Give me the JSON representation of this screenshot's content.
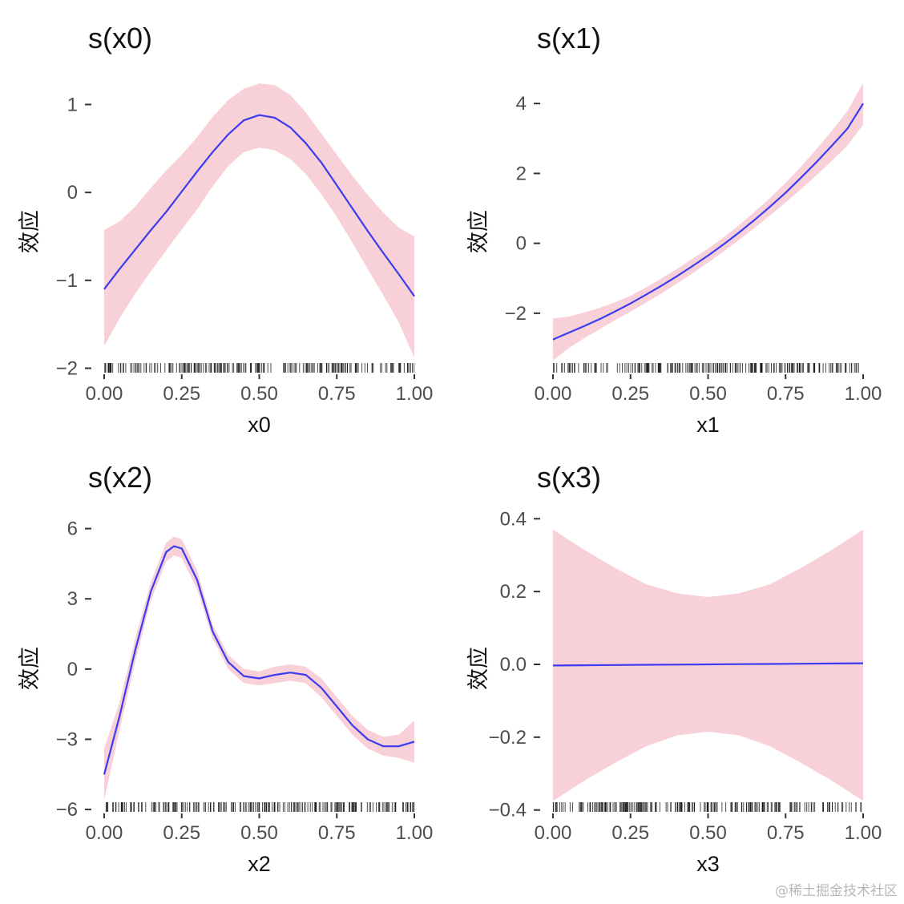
{
  "chart_data": [
    {
      "type": "line",
      "title": "s(x0)",
      "xlabel": "x0",
      "ylabel": "效应",
      "xlim": [
        0,
        1
      ],
      "ylim": [
        -2.05,
        1.25
      ],
      "xticks": [
        0,
        0.25,
        0.5,
        0.75,
        1
      ],
      "xtick_labels": [
        "0.00",
        "0.25",
        "0.50",
        "0.75",
        "1.00"
      ],
      "yticks": [
        -2,
        -1,
        0,
        1
      ],
      "ytick_labels": [
        "−2",
        "−1",
        "0",
        "1"
      ],
      "grid": false,
      "series": [
        {
          "x": [
            0,
            0.05,
            0.1,
            0.15,
            0.2,
            0.25,
            0.3,
            0.35,
            0.4,
            0.45,
            0.5,
            0.55,
            0.6,
            0.65,
            0.7,
            0.75,
            0.8,
            0.85,
            0.9,
            0.95,
            1
          ],
          "values": [
            -1.1,
            -0.87,
            -0.65,
            -0.43,
            -0.22,
            0.01,
            0.24,
            0.46,
            0.66,
            0.82,
            0.88,
            0.85,
            0.74,
            0.56,
            0.34,
            0.08,
            -0.18,
            -0.44,
            -0.69,
            -0.93,
            -1.18
          ],
          "lower": [
            -1.75,
            -1.43,
            -1.15,
            -0.9,
            -0.66,
            -0.42,
            -0.19,
            0.07,
            0.3,
            0.46,
            0.51,
            0.48,
            0.38,
            0.21,
            -0.02,
            -0.28,
            -0.57,
            -0.87,
            -1.17,
            -1.48,
            -1.88
          ],
          "upper": [
            -0.43,
            -0.33,
            -0.16,
            0.05,
            0.25,
            0.43,
            0.63,
            0.86,
            1.05,
            1.18,
            1.24,
            1.22,
            1.11,
            0.91,
            0.67,
            0.43,
            0.19,
            -0.03,
            -0.23,
            -0.4,
            -0.5
          ]
        }
      ]
    },
    {
      "type": "line",
      "title": "s(x1)",
      "xlabel": "x1",
      "ylabel": "效应",
      "xlim": [
        0,
        1
      ],
      "ylim": [
        -3.7,
        4.6
      ],
      "xticks": [
        0,
        0.25,
        0.5,
        0.75,
        1
      ],
      "xtick_labels": [
        "0.00",
        "0.25",
        "0.50",
        "0.75",
        "1.00"
      ],
      "yticks": [
        -2,
        0,
        2,
        4
      ],
      "ytick_labels": [
        "−2",
        "0",
        "2",
        "4"
      ],
      "grid": false,
      "series": [
        {
          "x": [
            0,
            0.05,
            0.1,
            0.15,
            0.2,
            0.25,
            0.3,
            0.35,
            0.4,
            0.45,
            0.5,
            0.55,
            0.6,
            0.65,
            0.7,
            0.75,
            0.8,
            0.85,
            0.9,
            0.95,
            1
          ],
          "values": [
            -2.75,
            -2.56,
            -2.37,
            -2.17,
            -1.95,
            -1.72,
            -1.47,
            -1.21,
            -0.94,
            -0.65,
            -0.35,
            -0.03,
            0.31,
            0.67,
            1.05,
            1.45,
            1.88,
            2.33,
            2.8,
            3.29,
            4.0
          ],
          "lower": [
            -3.35,
            -3.0,
            -2.72,
            -2.46,
            -2.2,
            -1.95,
            -1.7,
            -1.43,
            -1.15,
            -0.86,
            -0.55,
            -0.23,
            0.1,
            0.44,
            0.8,
            1.17,
            1.55,
            1.95,
            2.37,
            2.8,
            3.4
          ],
          "upper": [
            -2.15,
            -2.1,
            -1.98,
            -1.85,
            -1.69,
            -1.5,
            -1.26,
            -1.0,
            -0.73,
            -0.44,
            -0.15,
            0.17,
            0.52,
            0.9,
            1.3,
            1.73,
            2.2,
            2.7,
            3.23,
            3.79,
            4.6
          ]
        }
      ]
    },
    {
      "type": "line",
      "title": "s(x2)",
      "xlabel": "x2",
      "ylabel": "效应",
      "xlim": [
        0,
        1
      ],
      "ylim": [
        -6.1,
        6.5
      ],
      "xticks": [
        0,
        0.25,
        0.5,
        0.75,
        1
      ],
      "xtick_labels": [
        "0.00",
        "0.25",
        "0.50",
        "0.75",
        "1.00"
      ],
      "yticks": [
        -6,
        -3,
        0,
        3,
        6
      ],
      "ytick_labels": [
        "−6",
        "−3",
        "0",
        "3",
        "6"
      ],
      "grid": false,
      "series": [
        {
          "x": [
            0,
            0.05,
            0.1,
            0.15,
            0.2,
            0.225,
            0.25,
            0.3,
            0.35,
            0.4,
            0.45,
            0.5,
            0.55,
            0.6,
            0.65,
            0.7,
            0.75,
            0.8,
            0.85,
            0.9,
            0.95,
            1
          ],
          "values": [
            -4.5,
            -2.0,
            0.8,
            3.3,
            5.0,
            5.25,
            5.15,
            3.8,
            1.6,
            0.3,
            -0.3,
            -0.4,
            -0.25,
            -0.15,
            -0.25,
            -0.8,
            -1.6,
            -2.4,
            -3.0,
            -3.3,
            -3.3,
            -3.1
          ],
          "lower": [
            -5.6,
            -2.6,
            0.3,
            2.9,
            4.6,
            4.85,
            4.75,
            3.4,
            1.3,
            0.0,
            -0.6,
            -0.7,
            -0.6,
            -0.5,
            -0.6,
            -1.2,
            -2.0,
            -2.8,
            -3.4,
            -3.7,
            -3.8,
            -4.0
          ],
          "upper": [
            -3.4,
            -1.4,
            1.3,
            3.7,
            5.4,
            5.65,
            5.55,
            4.2,
            1.9,
            0.6,
            0.0,
            -0.1,
            0.1,
            0.2,
            0.1,
            -0.4,
            -1.2,
            -2.0,
            -2.6,
            -2.9,
            -2.8,
            -2.2
          ]
        }
      ]
    },
    {
      "type": "line",
      "title": "s(x3)",
      "xlabel": "x3",
      "ylabel": "效应",
      "xlim": [
        0,
        1
      ],
      "ylim": [
        -0.405,
        0.405
      ],
      "xticks": [
        0,
        0.25,
        0.5,
        0.75,
        1
      ],
      "xtick_labels": [
        "0.00",
        "0.25",
        "0.50",
        "0.75",
        "1.00"
      ],
      "yticks": [
        -0.4,
        -0.2,
        0.0,
        0.2,
        0.4
      ],
      "ytick_labels": [
        "−0.4",
        "−0.2",
        "0.0",
        "0.2",
        "0.4"
      ],
      "grid": false,
      "series": [
        {
          "x": [
            0,
            0.1,
            0.2,
            0.3,
            0.4,
            0.5,
            0.6,
            0.7,
            0.8,
            0.9,
            1
          ],
          "values": [
            -0.003,
            -0.0024,
            -0.0018,
            -0.0012,
            -0.0006,
            0.0,
            0.0006,
            0.0012,
            0.0018,
            0.0024,
            0.003
          ],
          "lower": [
            -0.375,
            -0.32,
            -0.27,
            -0.225,
            -0.195,
            -0.185,
            -0.195,
            -0.225,
            -0.27,
            -0.32,
            -0.375
          ],
          "upper": [
            0.37,
            0.315,
            0.265,
            0.22,
            0.195,
            0.185,
            0.195,
            0.22,
            0.265,
            0.315,
            0.37
          ]
        }
      ]
    }
  ],
  "colors": {
    "line": "#3b3bf0",
    "band": "#f4b7c3",
    "rug": "#111111",
    "axis": "#333333"
  },
  "watermark": "@稀土掘金技术社区"
}
